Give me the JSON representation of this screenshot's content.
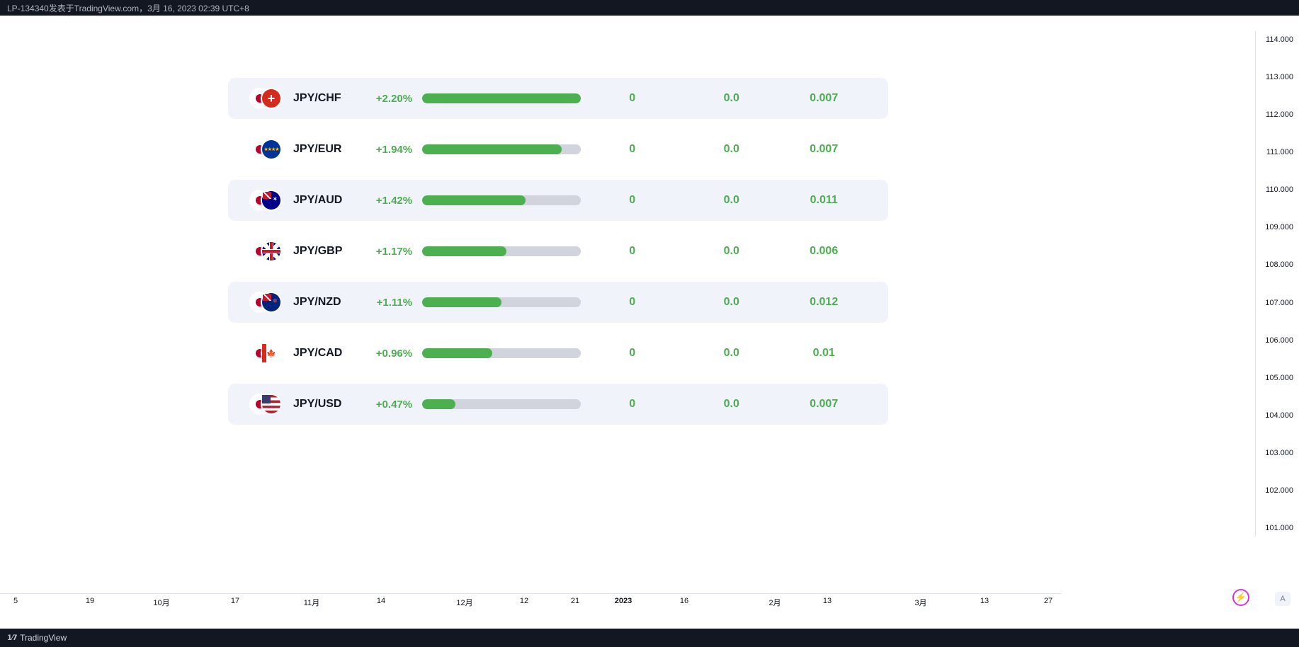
{
  "header": {
    "text": "LP-134340发表于TradingView.com，3月 16, 2023 02:39 UTC+8"
  },
  "footer": {
    "brand": "TradingView"
  },
  "buttons": {
    "bolt_icon": "⚡",
    "a_label": "A"
  },
  "colors": {
    "positive": "#4caf50",
    "bar_track": "#d1d4dc",
    "row_shaded": "#f0f3fa",
    "row_plain": "#ffffff",
    "header_bg": "#131722",
    "text_dark": "#131722",
    "bolt_ring": "#d633d6"
  },
  "y_axis": {
    "min": 101.0,
    "max": 114.0,
    "step": 1.0,
    "ticks": [
      "114.000",
      "113.000",
      "112.000",
      "111.000",
      "110.000",
      "109.000",
      "108.000",
      "107.000",
      "106.000",
      "105.000",
      "104.000",
      "103.000",
      "102.000",
      "101.000"
    ]
  },
  "x_axis": {
    "ticks": [
      {
        "label": "5",
        "pos": 22,
        "bold": false
      },
      {
        "label": "19",
        "pos": 127,
        "bold": false
      },
      {
        "label": "10月",
        "pos": 228,
        "bold": false
      },
      {
        "label": "17",
        "pos": 332,
        "bold": false
      },
      {
        "label": "11月",
        "pos": 440,
        "bold": false
      },
      {
        "label": "14",
        "pos": 538,
        "bold": false
      },
      {
        "label": "12月",
        "pos": 656,
        "bold": false
      },
      {
        "label": "12",
        "pos": 740,
        "bold": false
      },
      {
        "label": "21",
        "pos": 812,
        "bold": false
      },
      {
        "label": "2023",
        "pos": 880,
        "bold": true
      },
      {
        "label": "16",
        "pos": 966,
        "bold": false
      },
      {
        "label": "2月",
        "pos": 1094,
        "bold": false
      },
      {
        "label": "13",
        "pos": 1168,
        "bold": false
      },
      {
        "label": "3月",
        "pos": 1300,
        "bold": false
      },
      {
        "label": "13",
        "pos": 1390,
        "bold": false
      },
      {
        "label": "27",
        "pos": 1480,
        "bold": false
      }
    ]
  },
  "table": {
    "bar_max_pct": 2.2,
    "rows": [
      {
        "pair": "JPY/CHF",
        "pct": "+2.20%",
        "pct_value": 2.2,
        "col1": "0",
        "col2": "0.0",
        "col3": "0.007",
        "flag2": "ch",
        "shaded": true
      },
      {
        "pair": "JPY/EUR",
        "pct": "+1.94%",
        "pct_value": 1.94,
        "col1": "0",
        "col2": "0.0",
        "col3": "0.007",
        "flag2": "eu",
        "shaded": false
      },
      {
        "pair": "JPY/AUD",
        "pct": "+1.42%",
        "pct_value": 1.42,
        "col1": "0",
        "col2": "0.0",
        "col3": "0.011",
        "flag2": "au",
        "shaded": true
      },
      {
        "pair": "JPY/GBP",
        "pct": "+1.17%",
        "pct_value": 1.17,
        "col1": "0",
        "col2": "0.0",
        "col3": "0.006",
        "flag2": "gb",
        "shaded": false
      },
      {
        "pair": "JPY/NZD",
        "pct": "+1.11%",
        "pct_value": 1.11,
        "col1": "0",
        "col2": "0.0",
        "col3": "0.012",
        "flag2": "nz",
        "shaded": true
      },
      {
        "pair": "JPY/CAD",
        "pct": "+0.96%",
        "pct_value": 0.96,
        "col1": "0",
        "col2": "0.0",
        "col3": "0.01",
        "flag2": "ca",
        "shaded": false
      },
      {
        "pair": "JPY/USD",
        "pct": "+0.47%",
        "pct_value": 0.47,
        "col1": "0",
        "col2": "0.0",
        "col3": "0.007",
        "flag2": "us",
        "shaded": true
      }
    ]
  }
}
